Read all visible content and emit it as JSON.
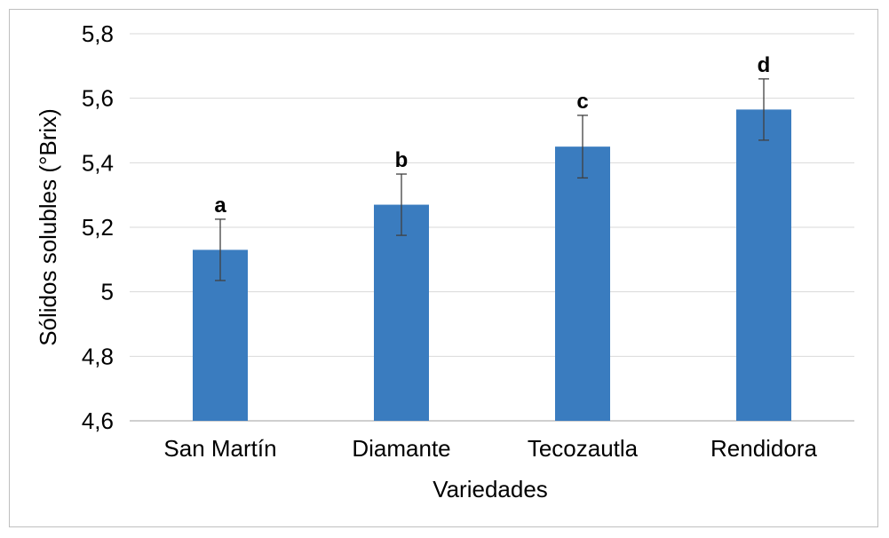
{
  "chart_data": {
    "type": "bar",
    "title": "",
    "xlabel": "Variedades",
    "ylabel": "Sólidos solubles (°Brix)",
    "ylim": [
      4.6,
      5.8
    ],
    "yticks": [
      4.6,
      4.8,
      5.0,
      5.2,
      5.4,
      5.6,
      5.8
    ],
    "ytick_labels": [
      "4,6",
      "4,8",
      "5",
      "5,2",
      "5,4",
      "5,6",
      "5,8"
    ],
    "categories": [
      "San Martín",
      "Diamante",
      "Tecozautla",
      "Rendidora"
    ],
    "values": [
      5.13,
      5.27,
      5.45,
      5.565
    ],
    "errors": [
      0.095,
      0.095,
      0.097,
      0.095
    ],
    "annotations": [
      "a",
      "b",
      "c",
      "d"
    ],
    "bar_color": "#3a7cbf",
    "grid": true,
    "legend": "none"
  }
}
